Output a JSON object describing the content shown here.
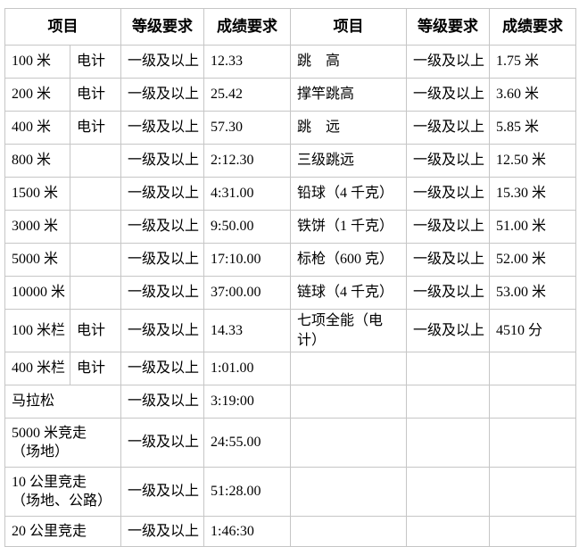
{
  "table": {
    "border_color": "#c6c6c6",
    "text_color": "#000000",
    "background": "#ffffff",
    "headers": {
      "item_left": "项目",
      "level_left": "等级要求",
      "score_left": "成绩要求",
      "item_right": "项目",
      "level_right": "等级要求",
      "score_right": "成绩要求"
    },
    "left_rows": [
      {
        "item": "100 米",
        "timing": "电计",
        "level": "一级及以上",
        "score": "12.33"
      },
      {
        "item": "200 米",
        "timing": "电计",
        "level": "一级及以上",
        "score": "25.42"
      },
      {
        "item": "400 米",
        "timing": "电计",
        "level": "一级及以上",
        "score": "57.30"
      },
      {
        "item": "800 米",
        "timing": "",
        "level": "一级及以上",
        "score": "2:12.30"
      },
      {
        "item": "1500 米",
        "timing": "",
        "level": "一级及以上",
        "score": "4:31.00"
      },
      {
        "item": "3000 米",
        "timing": "",
        "level": "一级及以上",
        "score": "9:50.00"
      },
      {
        "item": "5000 米",
        "timing": "",
        "level": "一级及以上",
        "score": "17:10.00"
      },
      {
        "item": "10000 米",
        "timing": "",
        "level": "一级及以上",
        "score": "37:00.00"
      },
      {
        "item": "100 米栏",
        "timing": "电计",
        "level": "一级及以上",
        "score": "14.33"
      },
      {
        "item": "400 米栏",
        "timing": "电计",
        "level": "一级及以上",
        "score": "1:01.00"
      },
      {
        "item": "马拉松",
        "level": "一级及以上",
        "score": "3:19:00"
      },
      {
        "item": "5000 米竞走\n（场地）",
        "level": "一级及以上",
        "score": "24:55.00"
      },
      {
        "item": "10 公里竞走\n（场地、公路）",
        "level": "一级及以上",
        "score": "51:28.00"
      },
      {
        "item": "20 公里竞走",
        "level": "一级及以上",
        "score": "1:46:30"
      }
    ],
    "right_rows": [
      {
        "item": "跳　高",
        "level": "一级及以上",
        "score": "1.75 米"
      },
      {
        "item": "撑竿跳高",
        "level": "一级及以上",
        "score": "3.60 米"
      },
      {
        "item": "跳　远",
        "level": "一级及以上",
        "score": "5.85 米"
      },
      {
        "item": "三级跳远",
        "level": "一级及以上",
        "score": "12.50 米"
      },
      {
        "item": "铅球（4 千克）",
        "level": "一级及以上",
        "score": "15.30 米"
      },
      {
        "item": "铁饼（1 千克）",
        "level": "一级及以上",
        "score": "51.00 米"
      },
      {
        "item": "标枪（600 克）",
        "level": "一级及以上",
        "score": "52.00 米"
      },
      {
        "item": "链球（4 千克）",
        "level": "一级及以上",
        "score": "53.00 米"
      },
      {
        "item": "七项全能（电计）",
        "level": "一级及以上",
        "score": "4510 分"
      },
      {
        "item": "",
        "level": "",
        "score": ""
      },
      {
        "item": "",
        "level": "",
        "score": ""
      },
      {
        "item": "",
        "level": "",
        "score": ""
      },
      {
        "item": "",
        "level": "",
        "score": ""
      },
      {
        "item": "",
        "level": "",
        "score": ""
      }
    ]
  }
}
